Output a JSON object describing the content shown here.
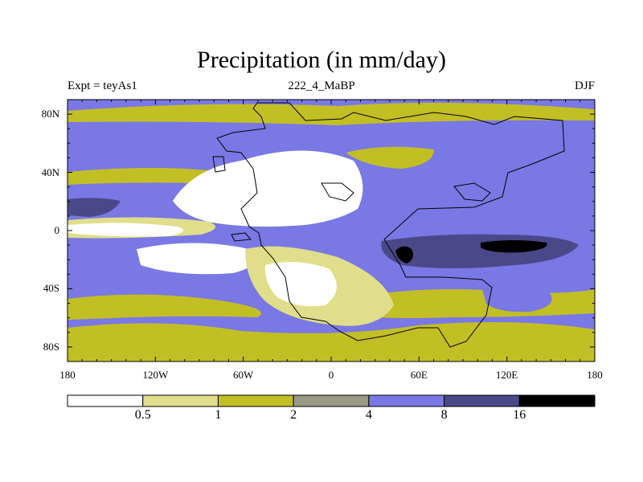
{
  "header": {
    "title": "Precipitation (in mm/day)",
    "left": "Expt = teyAs1",
    "center": "222_4_MaBP",
    "right": "DJF"
  },
  "chart_data": {
    "type": "heatmap",
    "title": "Precipitation (in mm/day)",
    "experiment": "teyAs1",
    "period": "222_4_MaBP",
    "season": "DJF",
    "units": "mm/day",
    "x_axis": {
      "range": [
        -180,
        180
      ],
      "ticks": [
        -180,
        -120,
        -60,
        0,
        60,
        120,
        180
      ],
      "tick_labels": [
        "180",
        "120W",
        "60W",
        "0",
        "60E",
        "120E",
        "180"
      ]
    },
    "y_axis": {
      "range": [
        -90,
        90
      ],
      "ticks": [
        80,
        40,
        0,
        -40,
        -80
      ],
      "tick_labels": [
        "80N",
        "40N",
        "0",
        "40S",
        "80S"
      ]
    },
    "contour_levels": [
      0.5,
      1,
      2,
      4,
      8,
      16
    ],
    "colorbar": {
      "labels": [
        "0.5",
        "1",
        "2",
        "4",
        "8",
        "16"
      ],
      "bins": [
        {
          "range": "<0.5",
          "color": "#ffffff"
        },
        {
          "range": "0.5-1",
          "color": "#e0de8a"
        },
        {
          "range": "1-2",
          "color": "#c2bf24"
        },
        {
          "range": "2-4",
          "color": "#9a9986"
        },
        {
          "range": "4-8",
          "color": "#7a78e4"
        },
        {
          "range": "8-16",
          "color": "#4a4889"
        },
        {
          "range": ">16",
          "color": "#000000"
        }
      ]
    },
    "regions": [
      {
        "name": "background",
        "bin": 4
      },
      {
        "name": "south-polar-belt",
        "bin": 2,
        "lat": [
          -90,
          -66
        ]
      },
      {
        "name": "southern-dry-belt",
        "bin": 2,
        "lat": [
          -68,
          -43
        ]
      },
      {
        "name": "arctic-dry-band",
        "bin": 2,
        "lat": [
          70,
          85
        ]
      },
      {
        "name": "northern-storm-track",
        "bin": 4,
        "lat": [
          52,
          60
        ]
      },
      {
        "name": "subtropical-north-dry-band",
        "bin": 2,
        "lat": [
          28,
          36
        ]
      },
      {
        "name": "equatorial-rain-band",
        "bin": 4,
        "lat": [
          -4,
          20
        ]
      },
      {
        "name": "equatorial-heavy-rain-west",
        "bin": 5,
        "lon": [
          -180,
          -140
        ],
        "lat": [
          7,
          17
        ]
      },
      {
        "name": "equatorial-dry-tongue",
        "bin": 1,
        "lat": [
          -4,
          4
        ]
      },
      {
        "name": "southern-subtropical-dry-tongue",
        "bin": 0,
        "lat": [
          -40,
          -10
        ]
      },
      {
        "name": "pangaea-interior-north",
        "bin": 0,
        "lon": [
          -85,
          10
        ],
        "lat": [
          0,
          40
        ]
      },
      {
        "name": "pangaea-interior-south",
        "bin": 1,
        "lon": [
          -60,
          40
        ],
        "lat": [
          -60,
          -10
        ]
      },
      {
        "name": "tethys-rain-band",
        "bin": 4,
        "lon": [
          35,
          180
        ],
        "lat": [
          -35,
          5
        ]
      },
      {
        "name": "tethys-heavy-rain",
        "bin": 5,
        "lon": [
          45,
          165
        ],
        "lat": [
          -30,
          -2
        ]
      },
      {
        "name": "tethys-max-east",
        "bin": 6,
        "lon": [
          95,
          125
        ],
        "lat": [
          -18,
          -8
        ]
      },
      {
        "name": "tethys-max-west",
        "bin": 6,
        "lon": [
          45,
          55
        ],
        "lat": [
          -25,
          -12
        ]
      }
    ]
  }
}
